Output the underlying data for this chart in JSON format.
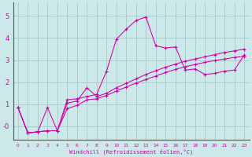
{
  "background_color": "#cce8e8",
  "grid_color": "#aacccc",
  "line_color": "#cc00aa",
  "spine_color": "#555555",
  "xlim": [
    -0.5,
    23.5
  ],
  "ylim": [
    -0.6,
    5.6
  ],
  "xticks": [
    0,
    1,
    2,
    3,
    4,
    5,
    6,
    7,
    8,
    9,
    10,
    11,
    12,
    13,
    14,
    15,
    16,
    17,
    18,
    19,
    20,
    21,
    22,
    23
  ],
  "yticks": [
    0,
    1,
    2,
    3,
    4,
    5
  ],
  "ytick_labels": [
    "-0",
    "1",
    "2",
    "3",
    "4",
    "5"
  ],
  "xlabel": "Windchill (Refroidissement éolien,°C)",
  "series1_x": [
    0,
    1,
    2,
    3,
    4,
    5,
    6,
    7,
    8,
    9,
    10,
    11,
    12,
    13,
    14,
    15,
    16,
    17,
    18,
    19,
    20,
    21,
    22,
    23
  ],
  "series1_y": [
    0.85,
    -0.3,
    -0.25,
    0.85,
    -0.2,
    1.2,
    1.25,
    1.35,
    1.45,
    2.5,
    3.95,
    4.4,
    4.8,
    4.95,
    3.65,
    3.55,
    3.6,
    2.55,
    2.6,
    2.35,
    2.4,
    2.5,
    2.55,
    3.25
  ],
  "series2_x": [
    0,
    1,
    2,
    3,
    4,
    5,
    6,
    7,
    8,
    9,
    10,
    11,
    12,
    13,
    14,
    15,
    16,
    17,
    18,
    19,
    20,
    21,
    22,
    23
  ],
  "series2_y": [
    0.85,
    -0.3,
    -0.25,
    -0.2,
    -0.2,
    1.05,
    1.15,
    1.75,
    1.35,
    1.5,
    1.75,
    1.95,
    2.15,
    2.35,
    2.52,
    2.68,
    2.82,
    2.95,
    3.05,
    3.15,
    3.25,
    3.35,
    3.42,
    3.5
  ],
  "series3_x": [
    0,
    1,
    2,
    3,
    4,
    5,
    6,
    7,
    8,
    9,
    10,
    11,
    12,
    13,
    14,
    15,
    16,
    17,
    18,
    19,
    20,
    21,
    22,
    23
  ],
  "series3_y": [
    0.85,
    -0.3,
    -0.25,
    -0.2,
    -0.2,
    0.8,
    0.95,
    1.2,
    1.25,
    1.4,
    1.6,
    1.78,
    1.96,
    2.12,
    2.28,
    2.44,
    2.58,
    2.7,
    2.8,
    2.9,
    2.98,
    3.05,
    3.12,
    3.18
  ]
}
